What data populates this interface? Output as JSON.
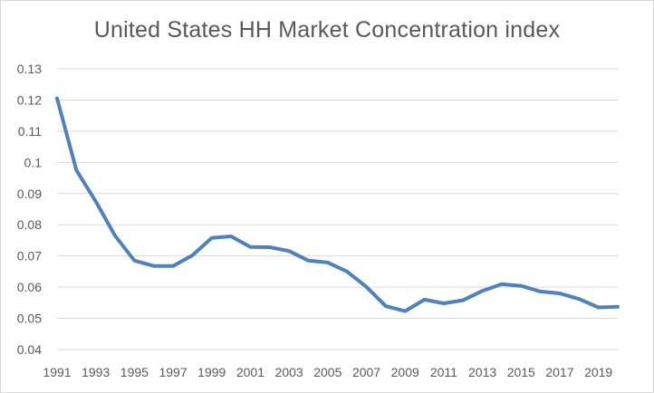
{
  "chart_data": {
    "type": "line",
    "title": "United States HH Market Concentration index",
    "xlabel": "",
    "ylabel": "",
    "x": [
      1991,
      1992,
      1993,
      1994,
      1995,
      1996,
      1997,
      1998,
      1999,
      2000,
      2001,
      2002,
      2003,
      2004,
      2005,
      2006,
      2007,
      2008,
      2009,
      2010,
      2011,
      2012,
      2013,
      2014,
      2015,
      2016,
      2017,
      2018,
      2019,
      2020
    ],
    "series": [
      {
        "name": "",
        "color": "#4f81bd",
        "values": [
          0.1205,
          0.0975,
          0.0875,
          0.0765,
          0.0685,
          0.0668,
          0.0668,
          0.0702,
          0.0758,
          0.0763,
          0.0729,
          0.0728,
          0.0716,
          0.0685,
          0.0679,
          0.065,
          0.0601,
          0.0539,
          0.0523,
          0.056,
          0.0548,
          0.0558,
          0.0588,
          0.061,
          0.0604,
          0.0586,
          0.058,
          0.0562,
          0.0535,
          0.0537
        ]
      }
    ],
    "ylim": [
      0.04,
      0.13
    ],
    "y_ticks": [
      "0.04",
      "0.05",
      "0.06",
      "0.07",
      "0.08",
      "0.09",
      "0.1",
      "0.11",
      "0.12",
      "0.13"
    ],
    "x_tick_labels": [
      "1991",
      "1993",
      "1995",
      "1997",
      "1999",
      "2001",
      "2003",
      "2005",
      "2007",
      "2009",
      "2011",
      "2013",
      "2015",
      "2017",
      "2019"
    ],
    "grid": true,
    "legend": "none"
  }
}
